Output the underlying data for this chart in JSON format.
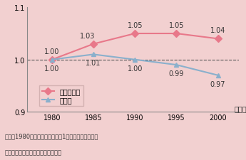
{
  "years": [
    1980,
    1985,
    1990,
    1995,
    2000
  ],
  "metropolitan": [
    1.0,
    1.03,
    1.05,
    1.05,
    1.04
  ],
  "rural": [
    1.0,
    1.01,
    1.0,
    0.99,
    0.97
  ],
  "metro_color": "#e8788a",
  "rural_color": "#8ab0cc",
  "metro_label": "三大都市圈",
  "rural_label": "地方圈",
  "ylim": [
    0.9,
    1.1
  ],
  "yticks": [
    0.9,
    1.0,
    1.1
  ],
  "xticks": [
    1980,
    1985,
    1990,
    1995,
    2000
  ],
  "bg_color": "#f2d0d0",
  "plot_bg_color": "#f2d0d0",
  "note_line1": "（注）1980年における世帯数を1と指数化している。",
  "note_line2": "資料）総務省「国勢調査」より作成",
  "dashed_line_y": 1.0,
  "year_label": "（年）"
}
